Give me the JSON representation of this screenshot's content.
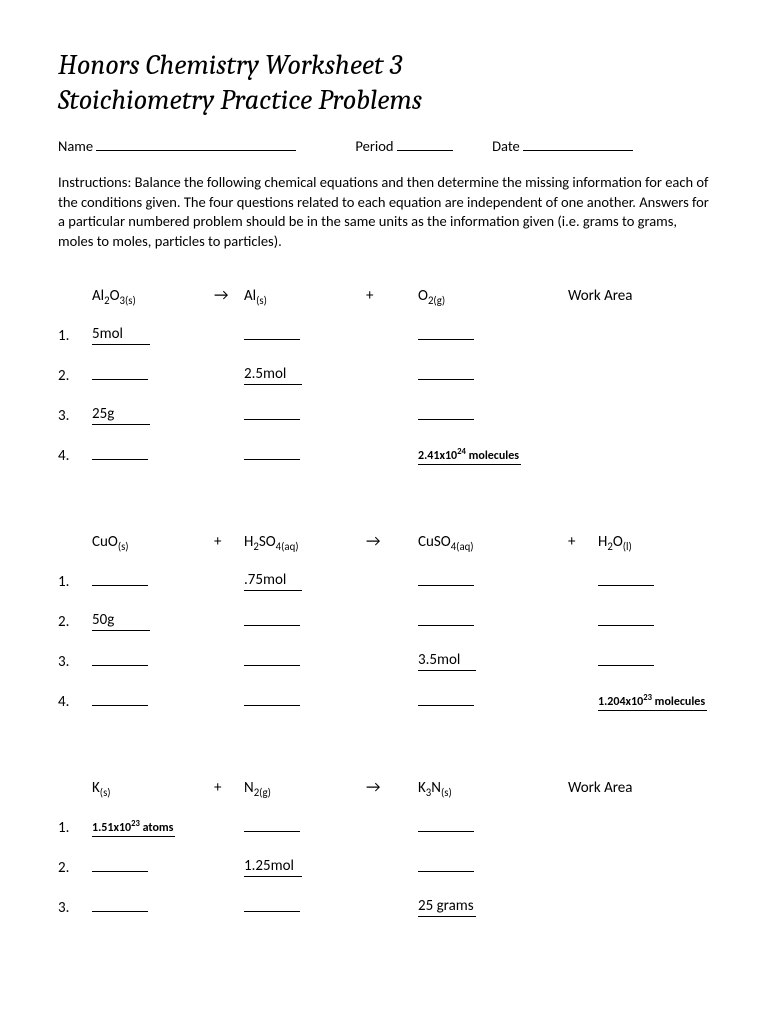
{
  "title_line1": "Honors Chemistry Worksheet 3",
  "title_line2": "Stoichiometry Practice Problems",
  "meta": {
    "name_label": "Name",
    "period_label": "Period",
    "date_label": "Date",
    "name_ul_width": 200,
    "period_ul_width": 56,
    "date_ul_width": 110
  },
  "instructions": "Instructions:  Balance the following chemical equations and then determine the missing information for each of the conditions given.  The four questions related to each equation are independent of one another.  Answers for a particular numbered problem should be in the same units as the information given (i.e. grams to grams, moles to moles, particles to particles).",
  "arrow_glyph": "→",
  "plus_glyph": "+",
  "work_area_label": "Work Area",
  "blank_width": 56,
  "eq1": {
    "species": [
      "Al|2|O|3(s)",
      "Al|(s)",
      "O|2(g)"
    ],
    "rows": [
      {
        "n": "1.",
        "v": [
          "5mol",
          "",
          ""
        ],
        "cls": [
          "",
          "",
          ""
        ]
      },
      {
        "n": "2.",
        "v": [
          "",
          "2.5mol",
          ""
        ],
        "cls": [
          "",
          "",
          ""
        ]
      },
      {
        "n": "3.",
        "v": [
          "25g",
          "",
          ""
        ],
        "cls": [
          "",
          "",
          ""
        ]
      },
      {
        "n": "4.",
        "v": [
          "",
          "",
          "2.41x10^24 molecules"
        ],
        "cls": [
          "",
          "",
          "small"
        ]
      }
    ]
  },
  "eq2": {
    "species": [
      "CuO|(s)",
      "H|2|SO|4(aq)",
      "CuSO|4(aq)",
      "H|2|O|(l)"
    ],
    "rows": [
      {
        "n": "1.",
        "v": [
          "",
          ".75mol",
          "",
          ""
        ],
        "cls": [
          "",
          "",
          "",
          ""
        ]
      },
      {
        "n": "2.",
        "v": [
          "50g",
          "",
          "",
          ""
        ],
        "cls": [
          "",
          "",
          "",
          ""
        ]
      },
      {
        "n": "3.",
        "v": [
          "",
          "",
          "3.5mol",
          ""
        ],
        "cls": [
          "",
          "",
          "",
          ""
        ]
      },
      {
        "n": "4.",
        "v": [
          "",
          "",
          "",
          "1.204x10^23 molecules"
        ],
        "cls": [
          "",
          "",
          "",
          "small"
        ]
      }
    ]
  },
  "eq3": {
    "species": [
      "K|(s)",
      "N|2(g)",
      "K|3|N|(s)"
    ],
    "rows": [
      {
        "n": "1.",
        "v": [
          "1.51x10^23 atoms",
          "",
          ""
        ],
        "cls": [
          "small",
          "",
          ""
        ]
      },
      {
        "n": "2.",
        "v": [
          "",
          "1.25mol",
          ""
        ],
        "cls": [
          "",
          "",
          ""
        ]
      },
      {
        "n": "3.",
        "v": [
          "",
          "",
          "25 grams"
        ],
        "cls": [
          "",
          "",
          ""
        ]
      }
    ]
  }
}
